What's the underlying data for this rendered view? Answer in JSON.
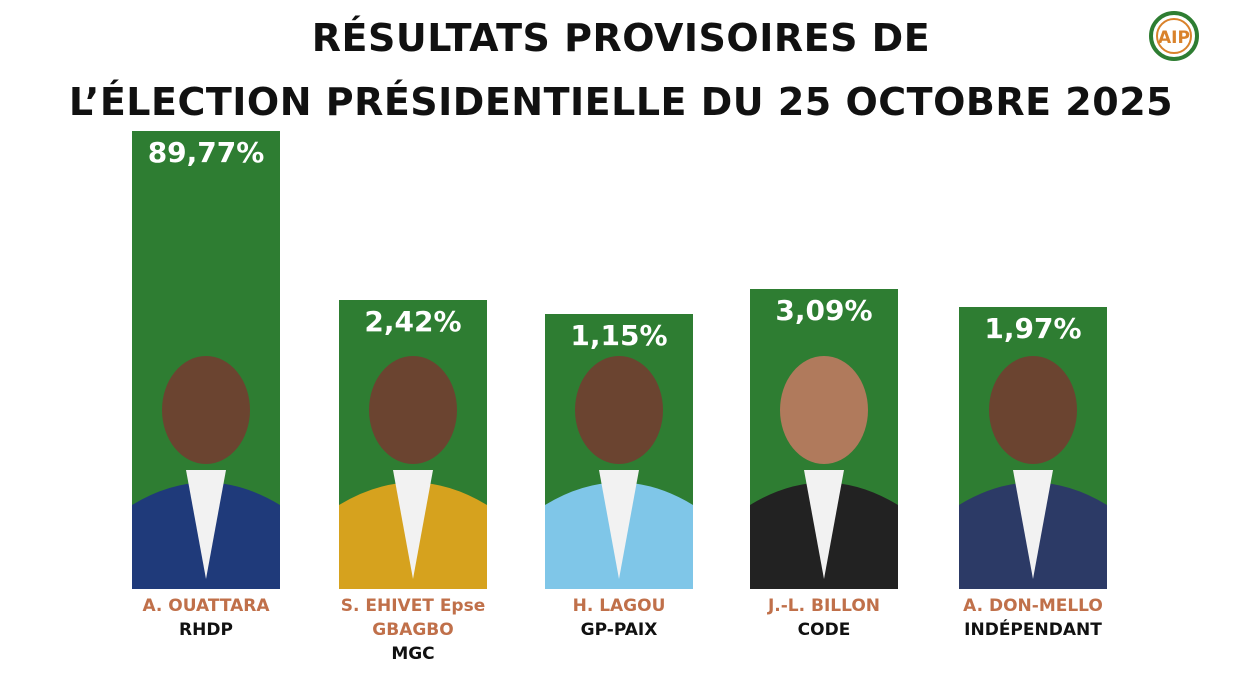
{
  "title": {
    "line1": "RÉSULTATS PROVISOIRES DE",
    "line2": "L’ÉLECTION PRÉSIDENTIELLE DU 25 OCTOBRE 2025"
  },
  "logo": {
    "text": "AIP",
    "icon": "aip-logo-icon"
  },
  "colors": {
    "bar": "#2e7d32",
    "name": "#c0704a",
    "party": "#111111",
    "title": "#111111"
  },
  "chart_data": {
    "type": "bar",
    "title": "RÉSULTATS PROVISOIRES DE L’ÉLECTION PRÉSIDENTIELLE DU 25 OCTOBRE 2025",
    "xlabel": "",
    "ylabel": "",
    "grid": false,
    "categories": [
      "A. OUATTARA",
      "S. EHIVET Epse GBAGBO",
      "H. LAGOU",
      "J.-L. BILLON",
      "A. DON-MELLO"
    ],
    "series": [
      {
        "values": [
          89.77,
          2.42,
          1.15,
          3.09,
          1.97
        ],
        "labels": [
          "89,77%",
          "2,42%",
          "1,15%",
          "3,09%",
          "1,97%"
        ]
      }
    ],
    "candidates": [
      {
        "name_lines": [
          "A. OUATTARA"
        ],
        "party": "RHDP",
        "value": 89.77,
        "label": "89,77%"
      },
      {
        "name_lines": [
          "S. EHIVET Epse",
          "GBAGBO"
        ],
        "party": "MGC",
        "value": 2.42,
        "label": "2,42%"
      },
      {
        "name_lines": [
          "H. LAGOU"
        ],
        "party": "GP-PAIX",
        "value": 1.15,
        "label": "1,15%"
      },
      {
        "name_lines": [
          "J.-L. BILLON"
        ],
        "party": "CODE",
        "value": 3.09,
        "label": "3,09%"
      },
      {
        "name_lines": [
          "A. DON-MELLO"
        ],
        "party": "INDÉPENDANT",
        "value": 1.97,
        "label": "1,97%"
      }
    ]
  }
}
